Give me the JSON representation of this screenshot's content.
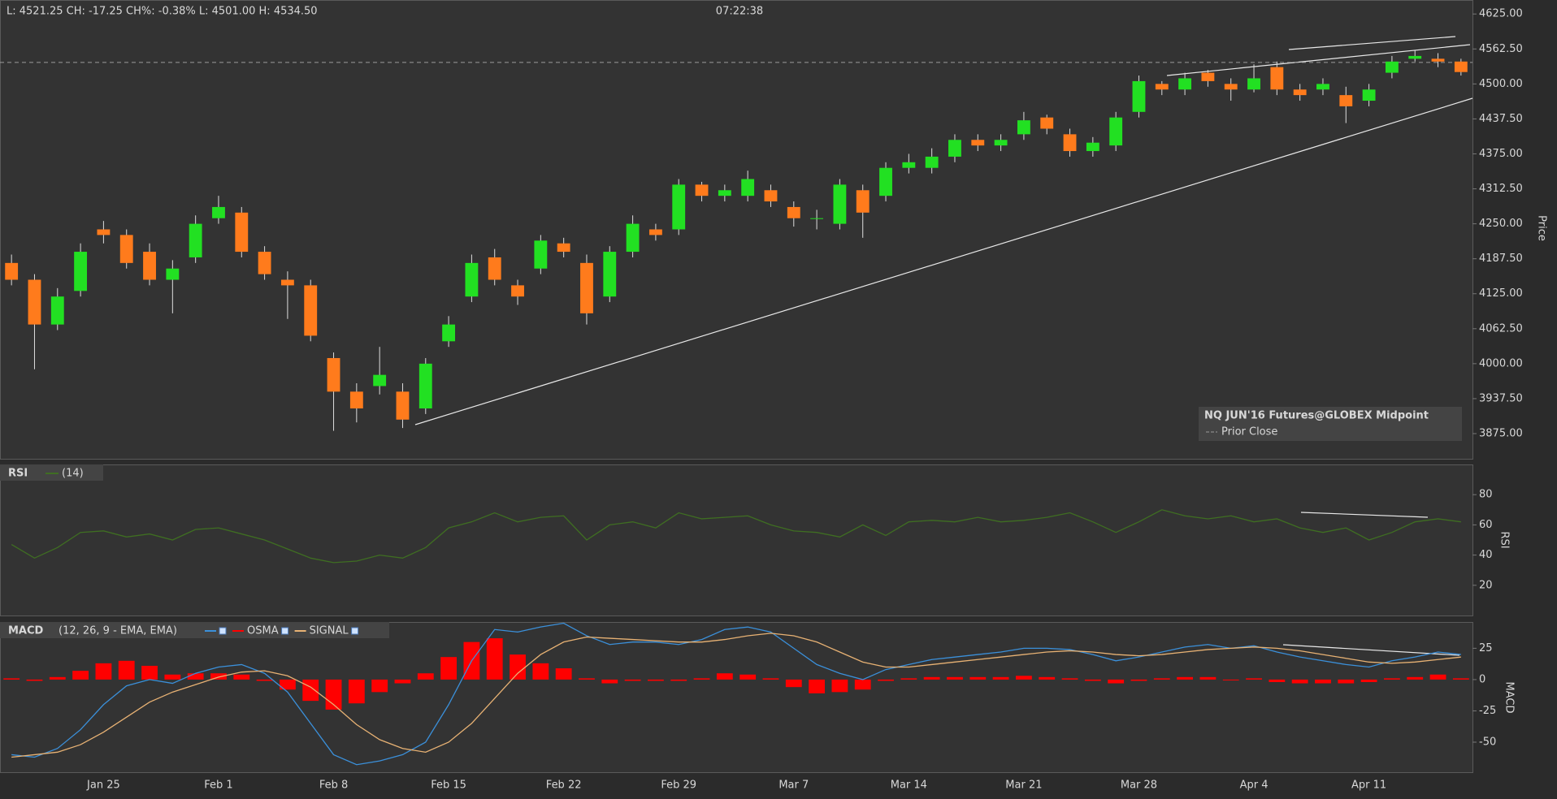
{
  "header": {
    "quote": "L: 4521.25  CH: -17.25  CH%: -0.38%  L: 4501.00  H: 4534.50",
    "time": "07:22:38"
  },
  "chart_data": [
    {
      "type": "candlestick",
      "ylabel": "Price",
      "ylim": [
        3830,
        4650
      ],
      "yticks": [
        {
          "value": 4625,
          "label": "4625.00"
        },
        {
          "value": 4562.5,
          "label": "4562.50"
        },
        {
          "value": 4500,
          "label": "4500.00"
        },
        {
          "value": 4437.5,
          "label": "4437.50"
        },
        {
          "value": 4375,
          "label": "4375.00"
        },
        {
          "value": 4312.5,
          "label": "4312.50"
        },
        {
          "value": 4250,
          "label": "4250.00"
        },
        {
          "value": 4187.5,
          "label": "4187.50"
        },
        {
          "value": 4125,
          "label": "4125.00"
        },
        {
          "value": 4062.5,
          "label": "4062.50"
        },
        {
          "value": 4000,
          "label": "4000.00"
        },
        {
          "value": 3937.5,
          "label": "3937.50"
        },
        {
          "value": 3875,
          "label": "3875.00"
        }
      ],
      "prior_close": {
        "name": "Prior Close",
        "value": 4538.5,
        "color": "#9a9a9a"
      },
      "series": [
        {
          "name": "NQ JUN'16 Futures@GLOBEX Midpoint",
          "up_color": "#22e022",
          "down_color": "#ff7b1c",
          "open": [
            4180,
            4150,
            4070,
            4130,
            4240,
            4230,
            4200,
            4150,
            4190,
            4260,
            4270,
            4200,
            4150,
            4140,
            4010,
            3950,
            3960,
            3950,
            3920,
            4040,
            4120,
            4190,
            4140,
            4170,
            4215,
            4180,
            4120,
            4200,
            4240,
            4240,
            4320,
            4300,
            4300,
            4310,
            4280,
            4260,
            4250,
            4310,
            4300,
            4350,
            4350,
            4370,
            4400,
            4390,
            4410,
            4440,
            4410,
            4380,
            4390,
            4450,
            4500,
            4490,
            4520,
            4500,
            4490,
            4530,
            4490,
            4490,
            4480,
            4470,
            4520,
            4545,
            4545,
            4540
          ],
          "high": [
            4195,
            4160,
            4135,
            4215,
            4255,
            4240,
            4215,
            4185,
            4265,
            4300,
            4280,
            4210,
            4165,
            4150,
            4020,
            3965,
            4030,
            3965,
            4010,
            4085,
            4195,
            4205,
            4150,
            4230,
            4225,
            4195,
            4210,
            4265,
            4250,
            4330,
            4325,
            4320,
            4345,
            4320,
            4290,
            4275,
            4330,
            4320,
            4360,
            4375,
            4385,
            4410,
            4410,
            4410,
            4450,
            4445,
            4420,
            4405,
            4450,
            4515,
            4505,
            4520,
            4525,
            4510,
            4535,
            4540,
            4500,
            4510,
            4495,
            4500,
            4550,
            4560,
            4555,
            4545
          ],
          "low": [
            4140,
            3990,
            4060,
            4120,
            4215,
            4170,
            4140,
            4090,
            4180,
            4250,
            4190,
            4150,
            4080,
            4040,
            3880,
            3895,
            3945,
            3885,
            3910,
            4030,
            4110,
            4140,
            4105,
            4160,
            4190,
            4070,
            4110,
            4190,
            4220,
            4230,
            4290,
            4290,
            4290,
            4280,
            4245,
            4240,
            4240,
            4225,
            4290,
            4340,
            4340,
            4360,
            4380,
            4380,
            4400,
            4410,
            4370,
            4370,
            4380,
            4440,
            4480,
            4480,
            4495,
            4470,
            4485,
            4480,
            4470,
            4480,
            4430,
            4460,
            4510,
            4540,
            4530,
            4515
          ],
          "close": [
            4150,
            4070,
            4120,
            4200,
            4230,
            4180,
            4150,
            4170,
            4250,
            4280,
            4200,
            4160,
            4140,
            4050,
            3950,
            3920,
            3980,
            3900,
            4000,
            4070,
            4180,
            4150,
            4120,
            4220,
            4200,
            4090,
            4200,
            4250,
            4230,
            4320,
            4300,
            4310,
            4330,
            4290,
            4260,
            4260,
            4320,
            4270,
            4350,
            4360,
            4370,
            4400,
            4390,
            4400,
            4435,
            4420,
            4380,
            4395,
            4440,
            4505,
            4490,
            4510,
            4505,
            4490,
            4510,
            4490,
            4480,
            4500,
            4460,
            4490,
            4540,
            4550,
            4540,
            4521.25
          ]
        }
      ]
    },
    {
      "type": "line",
      "title": "RSI",
      "ylabel": "RSI",
      "ylim": [
        0,
        100
      ],
      "yticks": [
        80,
        60,
        40,
        20
      ],
      "series": [
        {
          "name": "(14)",
          "color": "#3f6e22",
          "values": [
            47,
            38,
            45,
            55,
            56,
            52,
            54,
            50,
            57,
            58,
            54,
            50,
            44,
            38,
            35,
            36,
            40,
            38,
            45,
            58,
            62,
            68,
            62,
            65,
            66,
            50,
            60,
            62,
            58,
            68,
            64,
            65,
            66,
            60,
            56,
            55,
            52,
            60,
            53,
            62,
            63,
            62,
            65,
            62,
            63,
            65,
            68,
            62,
            55,
            62,
            70,
            66,
            64,
            66,
            62,
            64,
            58,
            55,
            58,
            50,
            55,
            62,
            64,
            62
          ]
        }
      ]
    },
    {
      "type": "macd",
      "title": "MACD",
      "subtitle": "(12, 26, 9 - EMA, EMA)",
      "ylabel": "MACD",
      "ylim": [
        -74,
        46
      ],
      "yticks": [
        25,
        0,
        -25,
        -50
      ],
      "categories": [
        null,
        null,
        null,
        null,
        "Jan 25",
        null,
        null,
        null,
        null,
        "Feb 1",
        null,
        null,
        null,
        null,
        "Feb 8",
        null,
        null,
        null,
        null,
        "Feb 15",
        null,
        null,
        null,
        null,
        "Feb 22",
        null,
        null,
        null,
        null,
        "Feb 29",
        null,
        null,
        null,
        null,
        "Mar 7",
        null,
        null,
        null,
        null,
        "Mar 14",
        null,
        null,
        null,
        null,
        "Mar 21",
        null,
        null,
        null,
        null,
        "Mar 28",
        null,
        null,
        null,
        null,
        "Apr 4",
        null,
        null,
        null,
        null,
        "Apr 11",
        null,
        null,
        null,
        null
      ],
      "series": [
        {
          "color": "#3b90da",
          "values": [
            -60,
            -62,
            -55,
            -40,
            -20,
            -5,
            0,
            -3,
            5,
            10,
            12,
            5,
            -10,
            -35,
            -60,
            -68,
            -65,
            -60,
            -50,
            -20,
            15,
            40,
            38,
            42,
            45,
            35,
            28,
            30,
            30,
            28,
            32,
            40,
            42,
            38,
            25,
            12,
            5,
            0,
            8,
            12,
            16,
            18,
            20,
            22,
            25,
            25,
            24,
            20,
            15,
            18,
            22,
            26,
            28,
            25,
            27,
            22,
            18,
            15,
            12,
            10,
            15,
            18,
            22,
            20
          ]
        },
        {
          "name": "OSMA",
          "type": "bar",
          "color": "#ff0000",
          "values": [
            1,
            -1,
            2,
            7,
            13,
            15,
            11,
            4,
            5,
            5,
            4,
            -1,
            -8,
            -17,
            -24,
            -19,
            -10,
            -3,
            5,
            18,
            30,
            33,
            20,
            13,
            9,
            1,
            -3,
            -1,
            -1,
            -1,
            1,
            5,
            4,
            1,
            -6,
            -11,
            -10,
            -8,
            -1,
            1,
            2,
            2,
            2,
            2,
            3,
            2,
            1,
            -1,
            -3,
            -1,
            1,
            2,
            2,
            0,
            1,
            -2,
            -3,
            -3,
            -3,
            -2,
            1,
            2,
            4,
            1
          ]
        },
        {
          "name": "SIGNAL",
          "color": "#e8b274",
          "values": [
            -62,
            -60,
            -58,
            -52,
            -42,
            -30,
            -18,
            -10,
            -4,
            2,
            6,
            7,
            3,
            -6,
            -20,
            -36,
            -48,
            -55,
            -58,
            -50,
            -35,
            -15,
            5,
            20,
            30,
            34,
            33,
            32,
            31,
            30,
            30,
            32,
            35,
            37,
            35,
            30,
            22,
            14,
            10,
            10,
            12,
            14,
            16,
            18,
            20,
            22,
            23,
            22,
            20,
            19,
            20,
            22,
            24,
            25,
            26,
            25,
            23,
            20,
            17,
            14,
            13,
            14,
            16,
            18
          ]
        }
      ]
    }
  ]
}
